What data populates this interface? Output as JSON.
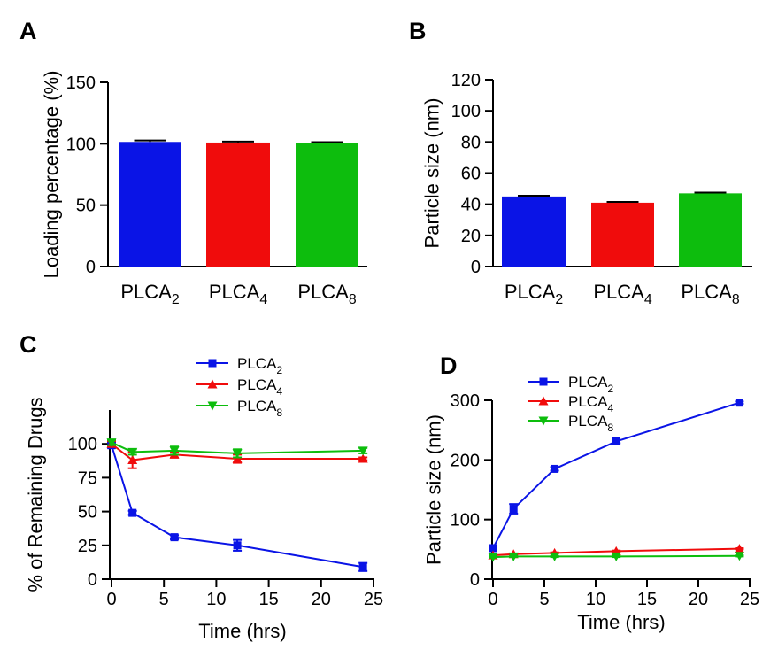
{
  "figure": {
    "panels": [
      {
        "letter": "A"
      },
      {
        "letter": "B"
      },
      {
        "letter": "C"
      },
      {
        "letter": "D"
      }
    ]
  },
  "colors": {
    "PLCA2": "#0a14e6",
    "PLCA4": "#f00c0c",
    "PLCA8": "#0dbd0d"
  },
  "chart_data": [
    {
      "panel": "A",
      "type": "bar",
      "categories": [
        {
          "base": "PLCA",
          "sub": "2"
        },
        {
          "base": "PLCA",
          "sub": "4"
        },
        {
          "base": "PLCA",
          "sub": "8"
        }
      ],
      "values": [
        101.5,
        101,
        100.5
      ],
      "errors": [
        1.2,
        0.8,
        0.8
      ],
      "colors": [
        "#0a14e6",
        "#f00c0c",
        "#0dbd0d"
      ],
      "ylabel": "Loading percentage (%)",
      "ylim": [
        0,
        150
      ],
      "yticks": [
        "0",
        "50",
        "100",
        "150"
      ]
    },
    {
      "panel": "B",
      "type": "bar",
      "categories": [
        {
          "base": "PLCA",
          "sub": "2"
        },
        {
          "base": "PLCA",
          "sub": "4"
        },
        {
          "base": "PLCA",
          "sub": "8"
        }
      ],
      "values": [
        45,
        41,
        47
      ],
      "errors": [
        0.5,
        0.5,
        0.5
      ],
      "colors": [
        "#0a14e6",
        "#f00c0c",
        "#0dbd0d"
      ],
      "ylabel": "Particle size (nm)",
      "ylim": [
        0,
        120
      ],
      "yticks": [
        "0",
        "20",
        "40",
        "60",
        "80",
        "100",
        "120"
      ]
    },
    {
      "panel": "C",
      "type": "line",
      "xlabel": "Time (hrs)",
      "ylabel": "% of Remaining Drugs",
      "xlim": [
        0,
        25
      ],
      "ylim": [
        0,
        125
      ],
      "xticks": [
        "0",
        "5",
        "10",
        "15",
        "20",
        "25"
      ],
      "yticks": [
        "0",
        "25",
        "50",
        "75",
        "100"
      ],
      "legend_position": "top-center",
      "series": [
        {
          "legend": {
            "base": "PLCA",
            "sub": "2"
          },
          "color": "#0a14e6",
          "marker": "square",
          "x": [
            0,
            2,
            6,
            12,
            24
          ],
          "y": [
            99,
            49,
            31,
            25,
            9
          ],
          "err": [
            2,
            1.5,
            1.5,
            4,
            3
          ]
        },
        {
          "legend": {
            "base": "PLCA",
            "sub": "4"
          },
          "color": "#f00c0c",
          "marker": "triangle-up",
          "x": [
            0,
            2,
            6,
            12,
            24
          ],
          "y": [
            100,
            88,
            92,
            89,
            89
          ],
          "err": [
            2,
            6,
            2,
            3,
            1
          ]
        },
        {
          "legend": {
            "base": "PLCA",
            "sub": "8"
          },
          "color": "#0dbd0d",
          "marker": "triangle-down",
          "x": [
            0,
            2,
            6,
            12,
            24
          ],
          "y": [
            101,
            94,
            95,
            93,
            95
          ],
          "err": [
            2,
            2,
            3,
            3,
            2
          ]
        }
      ]
    },
    {
      "panel": "D",
      "type": "line",
      "xlabel": "Time (hrs)",
      "ylabel": "Particle size (nm)",
      "xlim": [
        0,
        25
      ],
      "ylim": [
        0,
        300
      ],
      "xticks": [
        "0",
        "5",
        "10",
        "15",
        "20",
        "25"
      ],
      "yticks": [
        "0",
        "100",
        "200",
        "300"
      ],
      "legend_position": "top-left",
      "series": [
        {
          "legend": {
            "base": "PLCA",
            "sub": "2"
          },
          "color": "#0a14e6",
          "marker": "square",
          "x": [
            0,
            2,
            6,
            12,
            24
          ],
          "y": [
            52,
            118,
            185,
            231,
            296
          ],
          "err": [
            4,
            8,
            3,
            3,
            2
          ]
        },
        {
          "legend": {
            "base": "PLCA",
            "sub": "4"
          },
          "color": "#f00c0c",
          "marker": "triangle-up",
          "x": [
            0,
            2,
            6,
            12,
            24
          ],
          "y": [
            40,
            42,
            44,
            47,
            51
          ],
          "err": [
            1,
            1,
            1,
            1,
            1
          ]
        },
        {
          "legend": {
            "base": "PLCA",
            "sub": "8"
          },
          "color": "#0dbd0d",
          "marker": "triangle-down",
          "x": [
            0,
            2,
            6,
            12,
            24
          ],
          "y": [
            37,
            38,
            38,
            38,
            39
          ],
          "err": [
            1,
            1,
            1,
            1,
            1
          ]
        }
      ]
    }
  ]
}
